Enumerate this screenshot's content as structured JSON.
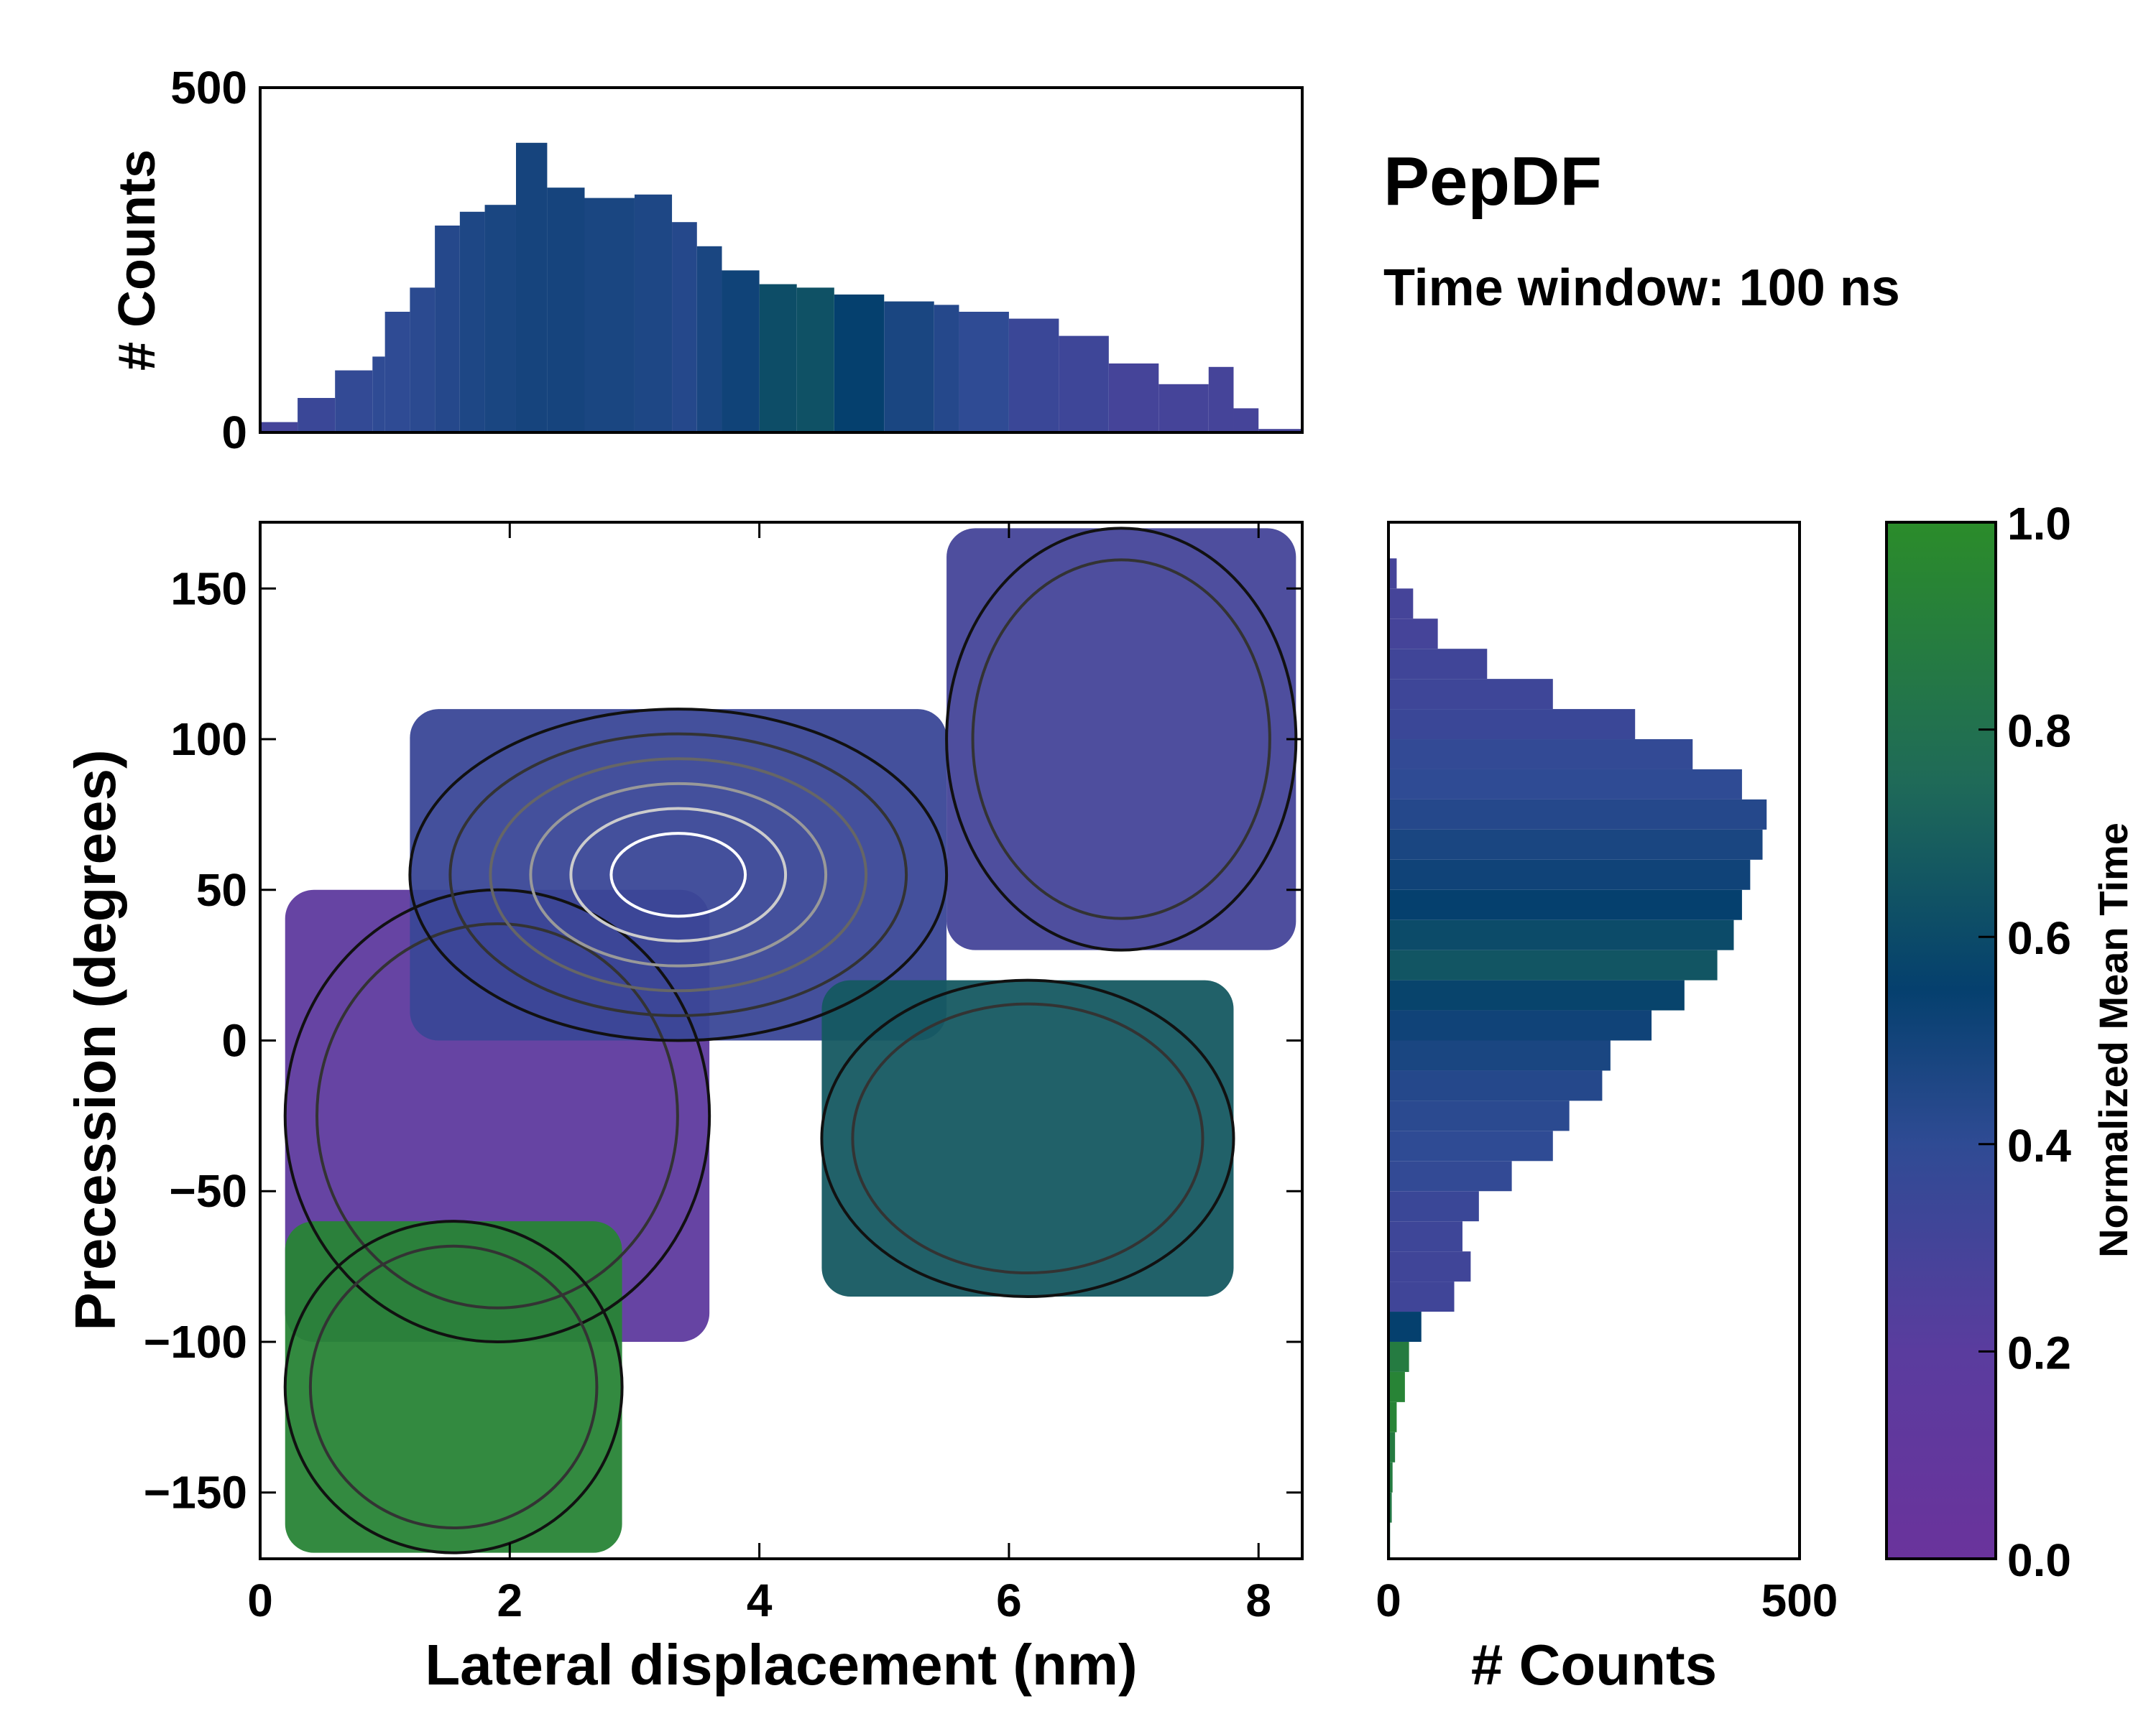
{
  "chart_data": [
    {
      "type": "heatmap",
      "name": "main-2d-map",
      "title": "PepDF",
      "subtitle": "Time window: 100 ns",
      "xlabel": "Lateral displacement (nm)",
      "ylabel": "Precession (degrees)",
      "xlim": [
        0,
        8.35
      ],
      "ylim": [
        -172,
        172
      ],
      "x_ticks": [
        0,
        2,
        4,
        6,
        8
      ],
      "y_ticks": [
        -150,
        -100,
        -50,
        0,
        50,
        100,
        150
      ],
      "x_tick_labels": [
        "0",
        "2",
        "4",
        "6",
        "8"
      ],
      "y_tick_labels": [
        "−150",
        "−100",
        "−50",
        "0",
        "50",
        "100",
        "150"
      ],
      "color_value": "Normalized Mean Time",
      "overlay": "density contours (black outer, grey to white inner)",
      "regions": [
        {
          "label": "purple cluster",
          "x_range": [
            0.2,
            3.6
          ],
          "y_range": [
            -100,
            50
          ],
          "mean_time": 0.15
        },
        {
          "label": "dense blue core",
          "x_range": [
            1.2,
            5.5
          ],
          "y_range": [
            0,
            110
          ],
          "mean_time": 0.35
        },
        {
          "label": "green tail",
          "x_range": [
            0.2,
            2.9
          ],
          "y_range": [
            -170,
            -60
          ],
          "mean_time": 0.95
        },
        {
          "label": "teal lobe",
          "x_range": [
            4.5,
            7.8
          ],
          "y_range": [
            -85,
            20
          ],
          "mean_time": 0.72
        },
        {
          "label": "upper blue-purple",
          "x_range": [
            5.5,
            8.3
          ],
          "y_range": [
            30,
            170
          ],
          "mean_time": 0.3
        }
      ]
    },
    {
      "type": "bar",
      "name": "top-histogram",
      "xlabel": "",
      "ylabel": "# Counts",
      "ylim": [
        0,
        500
      ],
      "y_ticks": [
        0,
        500
      ],
      "y_tick_labels": [
        "0",
        "500"
      ],
      "x": [
        0.0,
        0.3,
        0.6,
        0.9,
        1.0,
        1.2,
        1.4,
        1.6,
        1.8,
        2.05,
        2.3,
        2.6,
        3.0,
        3.3,
        3.5,
        3.7,
        4.0,
        4.3,
        4.6,
        5.0,
        5.4,
        5.6,
        6.0,
        6.4,
        6.8,
        7.2,
        7.6,
        7.8,
        8.0,
        8.35
      ],
      "counts": [
        15,
        50,
        90,
        110,
        175,
        210,
        300,
        320,
        330,
        420,
        355,
        340,
        345,
        305,
        270,
        235,
        215,
        210,
        200,
        190,
        185,
        175,
        165,
        140,
        100,
        70,
        95,
        35,
        5,
        0
      ],
      "colors_mean_time": [
        0.3,
        0.35,
        0.38,
        0.4,
        0.4,
        0.42,
        0.45,
        0.48,
        0.5,
        0.52,
        0.52,
        0.5,
        0.48,
        0.45,
        0.5,
        0.55,
        0.66,
        0.68,
        0.6,
        0.5,
        0.45,
        0.4,
        0.35,
        0.33,
        0.3,
        0.3,
        0.3,
        0.3,
        0.3,
        0.3
      ]
    },
    {
      "type": "bar",
      "name": "right-histogram",
      "orientation": "horizontal",
      "xlabel": "# Counts",
      "xlim": [
        0,
        500
      ],
      "x_ticks": [
        0,
        500
      ],
      "x_tick_labels": [
        "0",
        "500"
      ],
      "y": [
        172,
        160,
        150,
        140,
        130,
        120,
        110,
        100,
        90,
        80,
        70,
        60,
        50,
        40,
        30,
        20,
        10,
        0,
        -10,
        -20,
        -30,
        -40,
        -50,
        -60,
        -70,
        -80,
        -90,
        -100,
        -110,
        -120,
        -130,
        -140,
        -150,
        -160,
        -172
      ],
      "counts": [
        0,
        10,
        30,
        60,
        120,
        200,
        300,
        370,
        430,
        460,
        455,
        440,
        430,
        420,
        400,
        360,
        320,
        270,
        260,
        220,
        200,
        150,
        110,
        90,
        100,
        80,
        40,
        25,
        20,
        10,
        8,
        5,
        4,
        2,
        0
      ],
      "colors_mean_time": [
        0.3,
        0.3,
        0.3,
        0.3,
        0.32,
        0.33,
        0.35,
        0.38,
        0.4,
        0.45,
        0.5,
        0.55,
        0.6,
        0.65,
        0.7,
        0.62,
        0.55,
        0.5,
        0.45,
        0.42,
        0.4,
        0.38,
        0.35,
        0.33,
        0.32,
        0.32,
        0.6,
        0.9,
        0.95,
        0.95,
        0.9,
        0.9,
        0.88,
        0.85,
        0.85
      ]
    },
    {
      "type": "colorbar",
      "name": "colorbar",
      "label": "Normalized Mean Time",
      "range": [
        0,
        1
      ],
      "ticks": [
        0.0,
        0.2,
        0.4,
        0.6,
        0.8,
        1.0
      ],
      "tick_labels": [
        "0.0",
        "0.2",
        "0.4",
        "0.6",
        "0.8",
        "1.0"
      ],
      "colormap_stops": [
        "#6a339c",
        "#5a3c9e",
        "#2f4b94",
        "#05406e",
        "#1f6a58",
        "#2b8c2a"
      ]
    }
  ]
}
